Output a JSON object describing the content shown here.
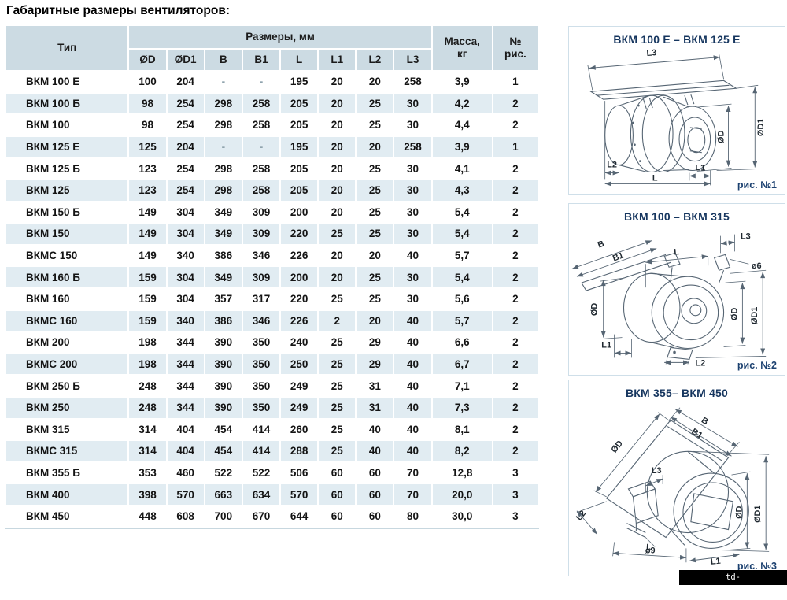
{
  "page": {
    "title": "Габаритные размеры вентиляторов:"
  },
  "table": {
    "header": {
      "type": "Тип",
      "dimensions_group": "Размеры, мм",
      "dimension_cols": [
        "ØD",
        "ØD1",
        "B",
        "B1",
        "L",
        "L1",
        "L2",
        "L3"
      ],
      "mass_line1": "Масса,",
      "mass_line2": "кг",
      "fig_line1": "№",
      "fig_line2": "рис."
    },
    "rows": [
      {
        "type": "ВКМ 100 Е",
        "values": [
          "100",
          "204",
          "-",
          "-",
          "195",
          "20",
          "20",
          "258",
          "3,9",
          "1"
        ]
      },
      {
        "type": "ВКМ 100 Б",
        "values": [
          "98",
          "254",
          "298",
          "258",
          "205",
          "20",
          "25",
          "30",
          "4,2",
          "2"
        ]
      },
      {
        "type": "ВКМ 100",
        "values": [
          "98",
          "254",
          "298",
          "258",
          "205",
          "20",
          "25",
          "30",
          "4,4",
          "2"
        ]
      },
      {
        "type": "ВКМ 125 Е",
        "values": [
          "125",
          "204",
          "-",
          "-",
          "195",
          "20",
          "20",
          "258",
          "3,9",
          "1"
        ]
      },
      {
        "type": "ВКМ 125 Б",
        "values": [
          "123",
          "254",
          "298",
          "258",
          "205",
          "20",
          "25",
          "30",
          "4,1",
          "2"
        ]
      },
      {
        "type": "ВКМ 125",
        "values": [
          "123",
          "254",
          "298",
          "258",
          "205",
          "20",
          "25",
          "30",
          "4,3",
          "2"
        ]
      },
      {
        "type": "ВКМ 150 Б",
        "values": [
          "149",
          "304",
          "349",
          "309",
          "200",
          "20",
          "25",
          "30",
          "5,4",
          "2"
        ]
      },
      {
        "type": "ВКМ 150",
        "values": [
          "149",
          "304",
          "349",
          "309",
          "220",
          "25",
          "25",
          "30",
          "5,4",
          "2"
        ]
      },
      {
        "type": "ВКМС 150",
        "values": [
          "149",
          "340",
          "386",
          "346",
          "226",
          "20",
          "20",
          "40",
          "5,7",
          "2"
        ]
      },
      {
        "type": "ВКМ 160 Б",
        "values": [
          "159",
          "304",
          "349",
          "309",
          "200",
          "20",
          "25",
          "30",
          "5,4",
          "2"
        ]
      },
      {
        "type": "ВКМ 160",
        "values": [
          "159",
          "304",
          "357",
          "317",
          "220",
          "25",
          "25",
          "30",
          "5,6",
          "2"
        ]
      },
      {
        "type": "ВКМС 160",
        "values": [
          "159",
          "340",
          "386",
          "346",
          "226",
          "2",
          "20",
          "40",
          "5,7",
          "2"
        ]
      },
      {
        "type": "ВКМ 200",
        "values": [
          "198",
          "344",
          "390",
          "350",
          "240",
          "25",
          "29",
          "40",
          "6,6",
          "2"
        ]
      },
      {
        "type": "ВКМС 200",
        "values": [
          "198",
          "344",
          "390",
          "350",
          "250",
          "25",
          "29",
          "40",
          "6,7",
          "2"
        ]
      },
      {
        "type": "ВКМ 250 Б",
        "values": [
          "248",
          "344",
          "390",
          "350",
          "249",
          "25",
          "31",
          "40",
          "7,1",
          "2"
        ]
      },
      {
        "type": "ВКМ 250",
        "values": [
          "248",
          "344",
          "390",
          "350",
          "249",
          "25",
          "31",
          "40",
          "7,3",
          "2"
        ]
      },
      {
        "type": "ВКМ 315",
        "values": [
          "314",
          "404",
          "454",
          "414",
          "260",
          "25",
          "40",
          "40",
          "8,1",
          "2"
        ]
      },
      {
        "type": "ВКМС 315",
        "values": [
          "314",
          "404",
          "454",
          "414",
          "288",
          "25",
          "40",
          "40",
          "8,2",
          "2"
        ]
      },
      {
        "type": "ВКМ 355 Б",
        "values": [
          "353",
          "460",
          "522",
          "522",
          "506",
          "60",
          "60",
          "70",
          "12,8",
          "3"
        ]
      },
      {
        "type": "ВКМ 400",
        "values": [
          "398",
          "570",
          "663",
          "634",
          "570",
          "60",
          "60",
          "70",
          "20,0",
          "3"
        ]
      },
      {
        "type": "ВКМ 450",
        "values": [
          "448",
          "608",
          "700",
          "670",
          "644",
          "60",
          "60",
          "80",
          "30,0",
          "3"
        ]
      }
    ]
  },
  "diagrams": [
    {
      "title": "ВКМ 100 Е – ВКМ 125 Е",
      "caption": "рис. №1",
      "labels": {
        "l3": "L3",
        "od": "ØD",
        "od1": "ØD1",
        "l2": "L2",
        "l1": "L1",
        "l": "L"
      }
    },
    {
      "title": "ВКМ 100 – ВКМ 315",
      "caption": "рис. №2",
      "labels": {
        "b": "B",
        "b1": "B1",
        "l": "L",
        "l3": "L3",
        "d6": "ø6",
        "od_left": "ØD",
        "od_right": "ØD",
        "od1": "ØD1",
        "l1": "L1",
        "l2": "L2"
      }
    },
    {
      "title": "ВКМ 355– ВКМ 450",
      "caption": "рис. №3",
      "labels": {
        "b": "B",
        "b1": "B1",
        "od_left": "ØD",
        "l3": "L3",
        "l2": "L2",
        "d9": "ø9",
        "l": "L",
        "l1": "L1",
        "od_right": "ØD",
        "od1": "ØD1"
      }
    }
  ],
  "watermark": {
    "text": "td-favoryt.agrobiz.net"
  },
  "colors": {
    "header_bg": "#ccdbe3",
    "row_alt_bg": "#e1ecf2",
    "table_border": "#c7d7df",
    "panel_border": "#cfdfe9",
    "title_navy": "#16365f",
    "caption_navy": "#1c4170",
    "drawing_line": "#566573",
    "watermark_bg": "#000000",
    "watermark_text": "#ffffff"
  }
}
